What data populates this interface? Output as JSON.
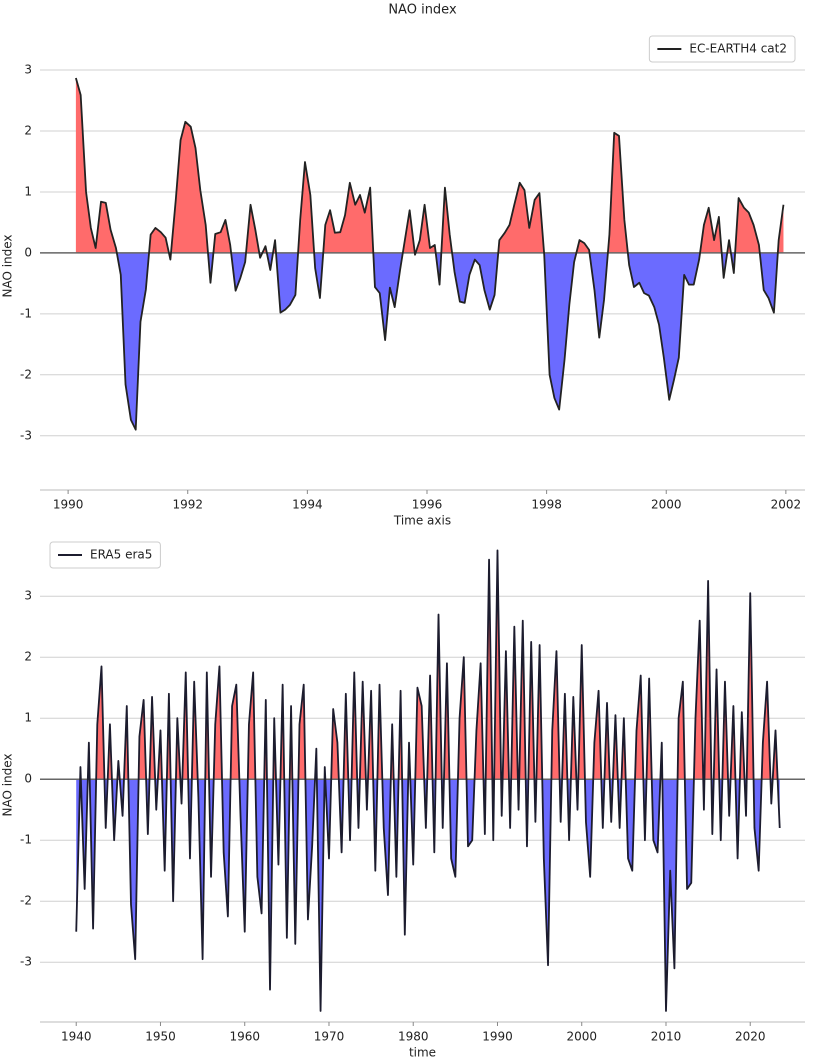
{
  "chart_data": [
    {
      "type": "area-line",
      "title": "NAO index",
      "xlabel": "Time axis",
      "ylabel": "NAO index",
      "legend": "upper right",
      "grid": true,
      "xlim": [
        1989.53,
        2002.32
      ],
      "xticks": [
        1990,
        1992,
        1994,
        1996,
        1998,
        2000,
        2002
      ],
      "ylim": [
        -3.89,
        3.46
      ],
      "yticks": [
        -3,
        -2,
        -1,
        0,
        1,
        2,
        3
      ],
      "positive_color": "#ff6b6b",
      "negative_color": "#6b6bff",
      "x": [
        1990.13,
        1990.21,
        1990.3,
        1990.38,
        1990.46,
        1990.55,
        1990.63,
        1990.71,
        1990.8,
        1990.88,
        1990.96,
        1991.05,
        1991.13,
        1991.21,
        1991.3,
        1991.38,
        1991.46,
        1991.55,
        1991.63,
        1991.71,
        1991.8,
        1991.88,
        1991.96,
        1992.05,
        1992.13,
        1992.21,
        1992.3,
        1992.38,
        1992.46,
        1992.55,
        1992.63,
        1992.71,
        1992.8,
        1992.88,
        1992.96,
        1993.05,
        1993.13,
        1993.21,
        1993.3,
        1993.38,
        1993.46,
        1993.55,
        1993.63,
        1993.71,
        1993.8,
        1993.88,
        1993.96,
        1994.05,
        1994.13,
        1994.21,
        1994.3,
        1994.38,
        1994.46,
        1994.55,
        1994.63,
        1994.71,
        1994.8,
        1994.88,
        1994.96,
        1995.05,
        1995.13,
        1995.21,
        1995.3,
        1995.38,
        1995.46,
        1995.55,
        1995.63,
        1995.71,
        1995.8,
        1995.88,
        1995.96,
        1996.05,
        1996.13,
        1996.21,
        1996.3,
        1996.38,
        1996.46,
        1996.55,
        1996.63,
        1996.71,
        1996.8,
        1996.88,
        1996.96,
        1997.05,
        1997.13,
        1997.21,
        1997.3,
        1997.38,
        1997.46,
        1997.55,
        1997.63,
        1997.71,
        1997.8,
        1997.88,
        1997.96,
        1998.05,
        1998.13,
        1998.21,
        1998.3,
        1998.38,
        1998.46,
        1998.55,
        1998.63,
        1998.71,
        1998.8,
        1998.88,
        1998.96,
        1999.05,
        1999.13,
        1999.21,
        1999.3,
        1999.38,
        1999.46,
        1999.55,
        1999.63,
        1999.71,
        1999.8,
        1999.88,
        1999.96,
        2000.05,
        2000.13,
        2000.21,
        2000.3,
        2000.38,
        2000.46,
        2000.55,
        2000.63,
        2000.71,
        2000.8,
        2000.88,
        2000.96,
        2001.05,
        2001.13,
        2001.21,
        2001.3,
        2001.38,
        2001.46,
        2001.55,
        2001.63,
        2001.71,
        2001.8,
        2001.88,
        2001.96
      ],
      "series": [
        {
          "name": "EC-EARTH4 cat2",
          "color": "#222222",
          "values": [
            2.87,
            2.59,
            1.0,
            0.41,
            0.08,
            0.84,
            0.82,
            0.38,
            0.08,
            -0.36,
            -2.16,
            -2.74,
            -2.9,
            -1.13,
            -0.6,
            0.3,
            0.41,
            0.34,
            0.25,
            -0.11,
            0.87,
            1.85,
            2.15,
            2.07,
            1.72,
            1.03,
            0.46,
            -0.49,
            0.31,
            0.34,
            0.54,
            0.13,
            -0.62,
            -0.41,
            -0.15,
            0.79,
            0.38,
            -0.08,
            0.11,
            -0.28,
            0.21,
            -0.98,
            -0.93,
            -0.85,
            -0.69,
            0.54,
            1.49,
            0.95,
            -0.25,
            -0.74,
            0.46,
            0.7,
            0.33,
            0.34,
            0.62,
            1.15,
            0.79,
            0.95,
            0.66,
            1.07,
            -0.56,
            -0.66,
            -1.43,
            -0.57,
            -0.89,
            -0.28,
            0.21,
            0.7,
            -0.03,
            0.21,
            0.79,
            0.08,
            0.13,
            -0.52,
            1.07,
            0.3,
            -0.31,
            -0.8,
            -0.82,
            -0.36,
            -0.11,
            -0.2,
            -0.61,
            -0.93,
            -0.69,
            0.21,
            0.33,
            0.46,
            0.79,
            1.15,
            1.03,
            0.41,
            0.87,
            0.98,
            -0.03,
            -2.0,
            -2.38,
            -2.57,
            -1.75,
            -0.85,
            -0.15,
            0.21,
            0.16,
            0.05,
            -0.61,
            -1.39,
            -0.77,
            0.3,
            1.97,
            1.92,
            0.54,
            -0.2,
            -0.56,
            -0.49,
            -0.66,
            -0.7,
            -0.89,
            -1.18,
            -1.72,
            -2.41,
            -2.08,
            -1.72,
            -0.36,
            -0.52,
            -0.52,
            -0.11,
            0.46,
            0.74,
            0.21,
            0.59,
            -0.41,
            0.21,
            -0.33,
            0.9,
            0.74,
            0.66,
            0.46,
            0.13,
            -0.61,
            -0.74,
            -0.98,
            0.21,
            0.79
          ]
        }
      ]
    },
    {
      "type": "area-line",
      "xlabel": "time",
      "ylabel": "NAO index",
      "legend": "upper left",
      "grid": true,
      "xlim": [
        1935.7,
        2026.5
      ],
      "xticks": [
        1940,
        1950,
        1960,
        1970,
        1980,
        1990,
        2000,
        2010,
        2020
      ],
      "ylim": [
        -3.98,
        3.79
      ],
      "yticks": [
        -3,
        -2,
        -1,
        0,
        1,
        2,
        3
      ],
      "positive_color": "#ff6b6b",
      "negative_color": "#6b6bff",
      "x": [
        1940,
        1940.5,
        1941,
        1941.5,
        1942,
        1942.5,
        1943,
        1943.5,
        1944,
        1944.5,
        1945,
        1945.5,
        1946,
        1946.5,
        1947,
        1947.5,
        1948,
        1948.5,
        1949,
        1949.5,
        1950,
        1950.5,
        1951,
        1951.5,
        1952,
        1952.5,
        1953,
        1953.5,
        1954,
        1954.5,
        1955,
        1955.5,
        1956,
        1956.5,
        1957,
        1957.5,
        1958,
        1958.5,
        1959,
        1959.5,
        1960,
        1960.5,
        1961,
        1961.5,
        1962,
        1962.5,
        1963,
        1963.5,
        1964,
        1964.5,
        1965,
        1965.5,
        1966,
        1966.5,
        1967,
        1967.5,
        1968,
        1968.5,
        1969,
        1969.5,
        1970,
        1970.5,
        1971,
        1971.5,
        1972,
        1972.5,
        1973,
        1973.5,
        1974,
        1974.5,
        1975,
        1975.5,
        1976,
        1976.5,
        1977,
        1977.5,
        1978,
        1978.5,
        1979,
        1979.5,
        1980,
        1980.5,
        1981,
        1981.5,
        1982,
        1982.5,
        1983,
        1983.5,
        1984,
        1984.5,
        1985,
        1985.5,
        1986,
        1986.5,
        1987,
        1987.5,
        1988,
        1988.5,
        1989,
        1989.5,
        1990,
        1990.5,
        1991,
        1991.5,
        1992,
        1992.5,
        1993,
        1993.5,
        1994,
        1994.5,
        1995,
        1995.5,
        1996,
        1996.5,
        1997,
        1997.5,
        1998,
        1998.5,
        1999,
        1999.5,
        2000,
        2000.5,
        2001,
        2001.5,
        2002,
        2002.5,
        2003,
        2003.5,
        2004,
        2004.5,
        2005,
        2005.5,
        2006,
        2006.5,
        2007,
        2007.5,
        2008,
        2008.5,
        2009,
        2009.5,
        2010,
        2010.5,
        2011,
        2011.5,
        2012,
        2012.5,
        2013,
        2013.5,
        2014,
        2014.5,
        2015,
        2015.5,
        2016,
        2016.5,
        2017,
        2017.5,
        2018,
        2018.5,
        2019,
        2019.5,
        2020,
        2020.5,
        2021,
        2021.5,
        2022,
        2022.5,
        2023,
        2023.5
      ],
      "series": [
        {
          "name": "ERA5 era5",
          "color": "#1c1c2e",
          "values": [
            -2.5,
            0.2,
            -1.8,
            0.6,
            -2.45,
            0.9,
            1.85,
            -0.8,
            0.9,
            -1.0,
            0.3,
            -0.6,
            1.2,
            -2.05,
            -2.95,
            0.7,
            1.3,
            -0.9,
            1.35,
            -0.5,
            0.8,
            -1.5,
            1.4,
            -2.0,
            1.0,
            -0.4,
            1.75,
            -1.3,
            1.6,
            -0.3,
            -2.95,
            1.75,
            -1.6,
            0.9,
            1.85,
            -1.2,
            -2.25,
            1.2,
            1.55,
            -0.6,
            -2.5,
            0.9,
            1.75,
            -1.6,
            -2.2,
            1.3,
            -3.45,
            1.0,
            -1.4,
            1.55,
            -2.6,
            1.2,
            -2.7,
            0.9,
            1.55,
            -2.3,
            -1.1,
            0.5,
            -3.8,
            0.2,
            -1.3,
            1.15,
            0.6,
            -1.2,
            1.4,
            -1.0,
            1.75,
            -0.8,
            1.6,
            -0.5,
            1.45,
            -1.5,
            1.55,
            -0.8,
            -1.9,
            0.9,
            -1.6,
            1.45,
            -2.55,
            0.6,
            -1.4,
            1.5,
            1.2,
            -0.8,
            1.7,
            -1.2,
            2.7,
            -0.8,
            1.9,
            -1.3,
            -1.6,
            1.0,
            2.0,
            -1.1,
            -1.0,
            0.8,
            1.9,
            -0.9,
            3.6,
            -1.0,
            3.75,
            -0.6,
            2.1,
            -0.8,
            2.5,
            -0.5,
            2.6,
            -1.1,
            2.25,
            -0.7,
            2.2,
            -1.3,
            -3.05,
            0.8,
            2.1,
            -0.7,
            1.4,
            -1.0,
            1.35,
            -0.5,
            2.2,
            -0.7,
            -1.6,
            0.6,
            1.45,
            -0.8,
            1.25,
            -0.7,
            1.05,
            -0.8,
            1.0,
            -1.3,
            -1.5,
            0.8,
            1.7,
            -1.0,
            1.65,
            -1.0,
            -1.2,
            0.6,
            -3.8,
            -1.5,
            -3.1,
            1.0,
            1.6,
            -1.8,
            -1.7,
            1.0,
            2.6,
            -0.5,
            3.25,
            -0.9,
            1.8,
            -1.0,
            1.6,
            -0.6,
            1.2,
            -1.3,
            1.1,
            -0.6,
            3.05,
            -0.8,
            -1.5,
            0.6,
            1.6,
            -0.4,
            0.8,
            -0.8
          ]
        }
      ]
    }
  ]
}
